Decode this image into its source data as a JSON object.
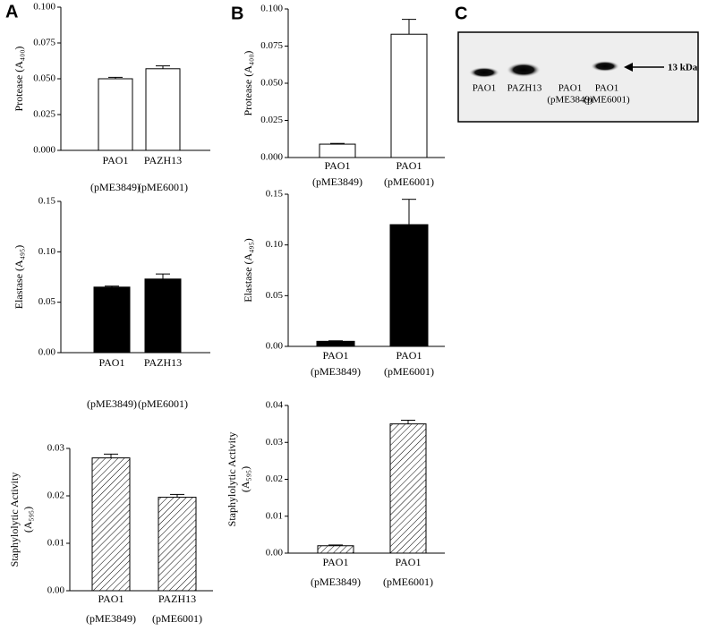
{
  "panel_labels": [
    "A",
    "B",
    "C"
  ],
  "chart_data": [
    {
      "type": "bar",
      "ylabel": [
        "Protease (A₄₀₀)"
      ],
      "categories": [
        [
          "PAO1",
          "(pME3849)"
        ],
        [
          "PAZH13",
          "(pME6001)"
        ]
      ],
      "values": [
        0.05,
        0.057
      ],
      "errors": [
        0.001,
        0.002
      ],
      "fill": "white",
      "ylim": [
        0,
        0.1
      ],
      "yticks": [
        {
          "value": 0,
          "label": "0.000"
        },
        {
          "value": 0.025,
          "label": "0.025"
        },
        {
          "value": 0.05,
          "label": "0.050"
        },
        {
          "value": 0.075,
          "label": "0.075"
        },
        {
          "value": 0.1,
          "label": "0.100"
        }
      ]
    },
    {
      "type": "bar",
      "ylabel": [
        "Elastase (A₄₉₅)"
      ],
      "categories": [
        [
          "PAO1",
          "(pME3849)"
        ],
        [
          "PAZH13",
          "(pME6001)"
        ]
      ],
      "values": [
        0.065,
        0.073
      ],
      "errors": [
        0.001,
        0.005
      ],
      "fill": "black",
      "ylim": [
        0,
        0.15
      ],
      "yticks": [
        {
          "value": 0,
          "label": "0.00"
        },
        {
          "value": 0.05,
          "label": "0.05"
        },
        {
          "value": 0.1,
          "label": "0.10"
        },
        {
          "value": 0.15,
          "label": "0.15"
        }
      ]
    },
    {
      "type": "bar",
      "ylabel": [
        "Staphylolytic Activity",
        "(A₅₉₅)"
      ],
      "categories": [
        [
          "PAO1",
          "(pME3849)"
        ],
        [
          "PAZH13",
          "(pME6001)"
        ]
      ],
      "values": [
        0.028,
        0.0197
      ],
      "errors": [
        0.0008,
        0.0006
      ],
      "fill": "hatch",
      "ylim": [
        0,
        0.03
      ],
      "yticks": [
        {
          "value": 0,
          "label": "0.00"
        },
        {
          "value": 0.01,
          "label": "0.01"
        },
        {
          "value": 0.02,
          "label": "0.02"
        },
        {
          "value": 0.03,
          "label": "0.03"
        }
      ]
    },
    {
      "type": "bar",
      "ylabel": [
        "Protease (A₄₀₀)"
      ],
      "categories": [
        [
          "PAO1",
          "(pME3849)"
        ],
        [
          "PAO1",
          "(pME6001)"
        ]
      ],
      "values": [
        0.009,
        0.083
      ],
      "errors": [
        0.0005,
        0.01
      ],
      "fill": "white",
      "ylim": [
        0,
        0.1
      ],
      "yticks": [
        {
          "value": 0,
          "label": "0.000"
        },
        {
          "value": 0.025,
          "label": "0.025"
        },
        {
          "value": 0.05,
          "label": "0.050"
        },
        {
          "value": 0.075,
          "label": "0.075"
        },
        {
          "value": 0.1,
          "label": "0.100"
        }
      ]
    },
    {
      "type": "bar",
      "ylabel": [
        "Elastase (A₄₉₅)"
      ],
      "categories": [
        [
          "PAO1",
          "(pME3849)"
        ],
        [
          "PAO1",
          "(pME6001)"
        ]
      ],
      "values": [
        0.005,
        0.12
      ],
      "errors": [
        0.0005,
        0.025
      ],
      "fill": "black",
      "ylim": [
        0,
        0.15
      ],
      "yticks": [
        {
          "value": 0,
          "label": "0.00"
        },
        {
          "value": 0.05,
          "label": "0.05"
        },
        {
          "value": 0.1,
          "label": "0.10"
        },
        {
          "value": 0.15,
          "label": "0.15"
        }
      ]
    },
    {
      "type": "bar",
      "ylabel": [
        "Staphylolytic Activity",
        "(A₅₉₅)"
      ],
      "categories": [
        [
          "PAO1",
          "(pME3849)"
        ],
        [
          "PAO1",
          "(pME6001)"
        ]
      ],
      "values": [
        0.002,
        0.035
      ],
      "errors": [
        0.0002,
        0.001
      ],
      "fill": "hatch",
      "ylim": [
        0,
        0.04
      ],
      "yticks": [
        {
          "value": 0,
          "label": "0.00"
        },
        {
          "value": 0.01,
          "label": "0.01"
        },
        {
          "value": 0.02,
          "label": "0.02"
        },
        {
          "value": 0.03,
          "label": "0.03"
        },
        {
          "value": 0.04,
          "label": "0.04"
        }
      ]
    }
  ],
  "blot": {
    "lanes": [
      [
        "PAO1"
      ],
      [
        "PAZH13"
      ],
      [
        "PAO1",
        "(pME3849)"
      ],
      [
        "PAO1",
        "(pME6001)"
      ]
    ],
    "marker": "13 kDa"
  }
}
